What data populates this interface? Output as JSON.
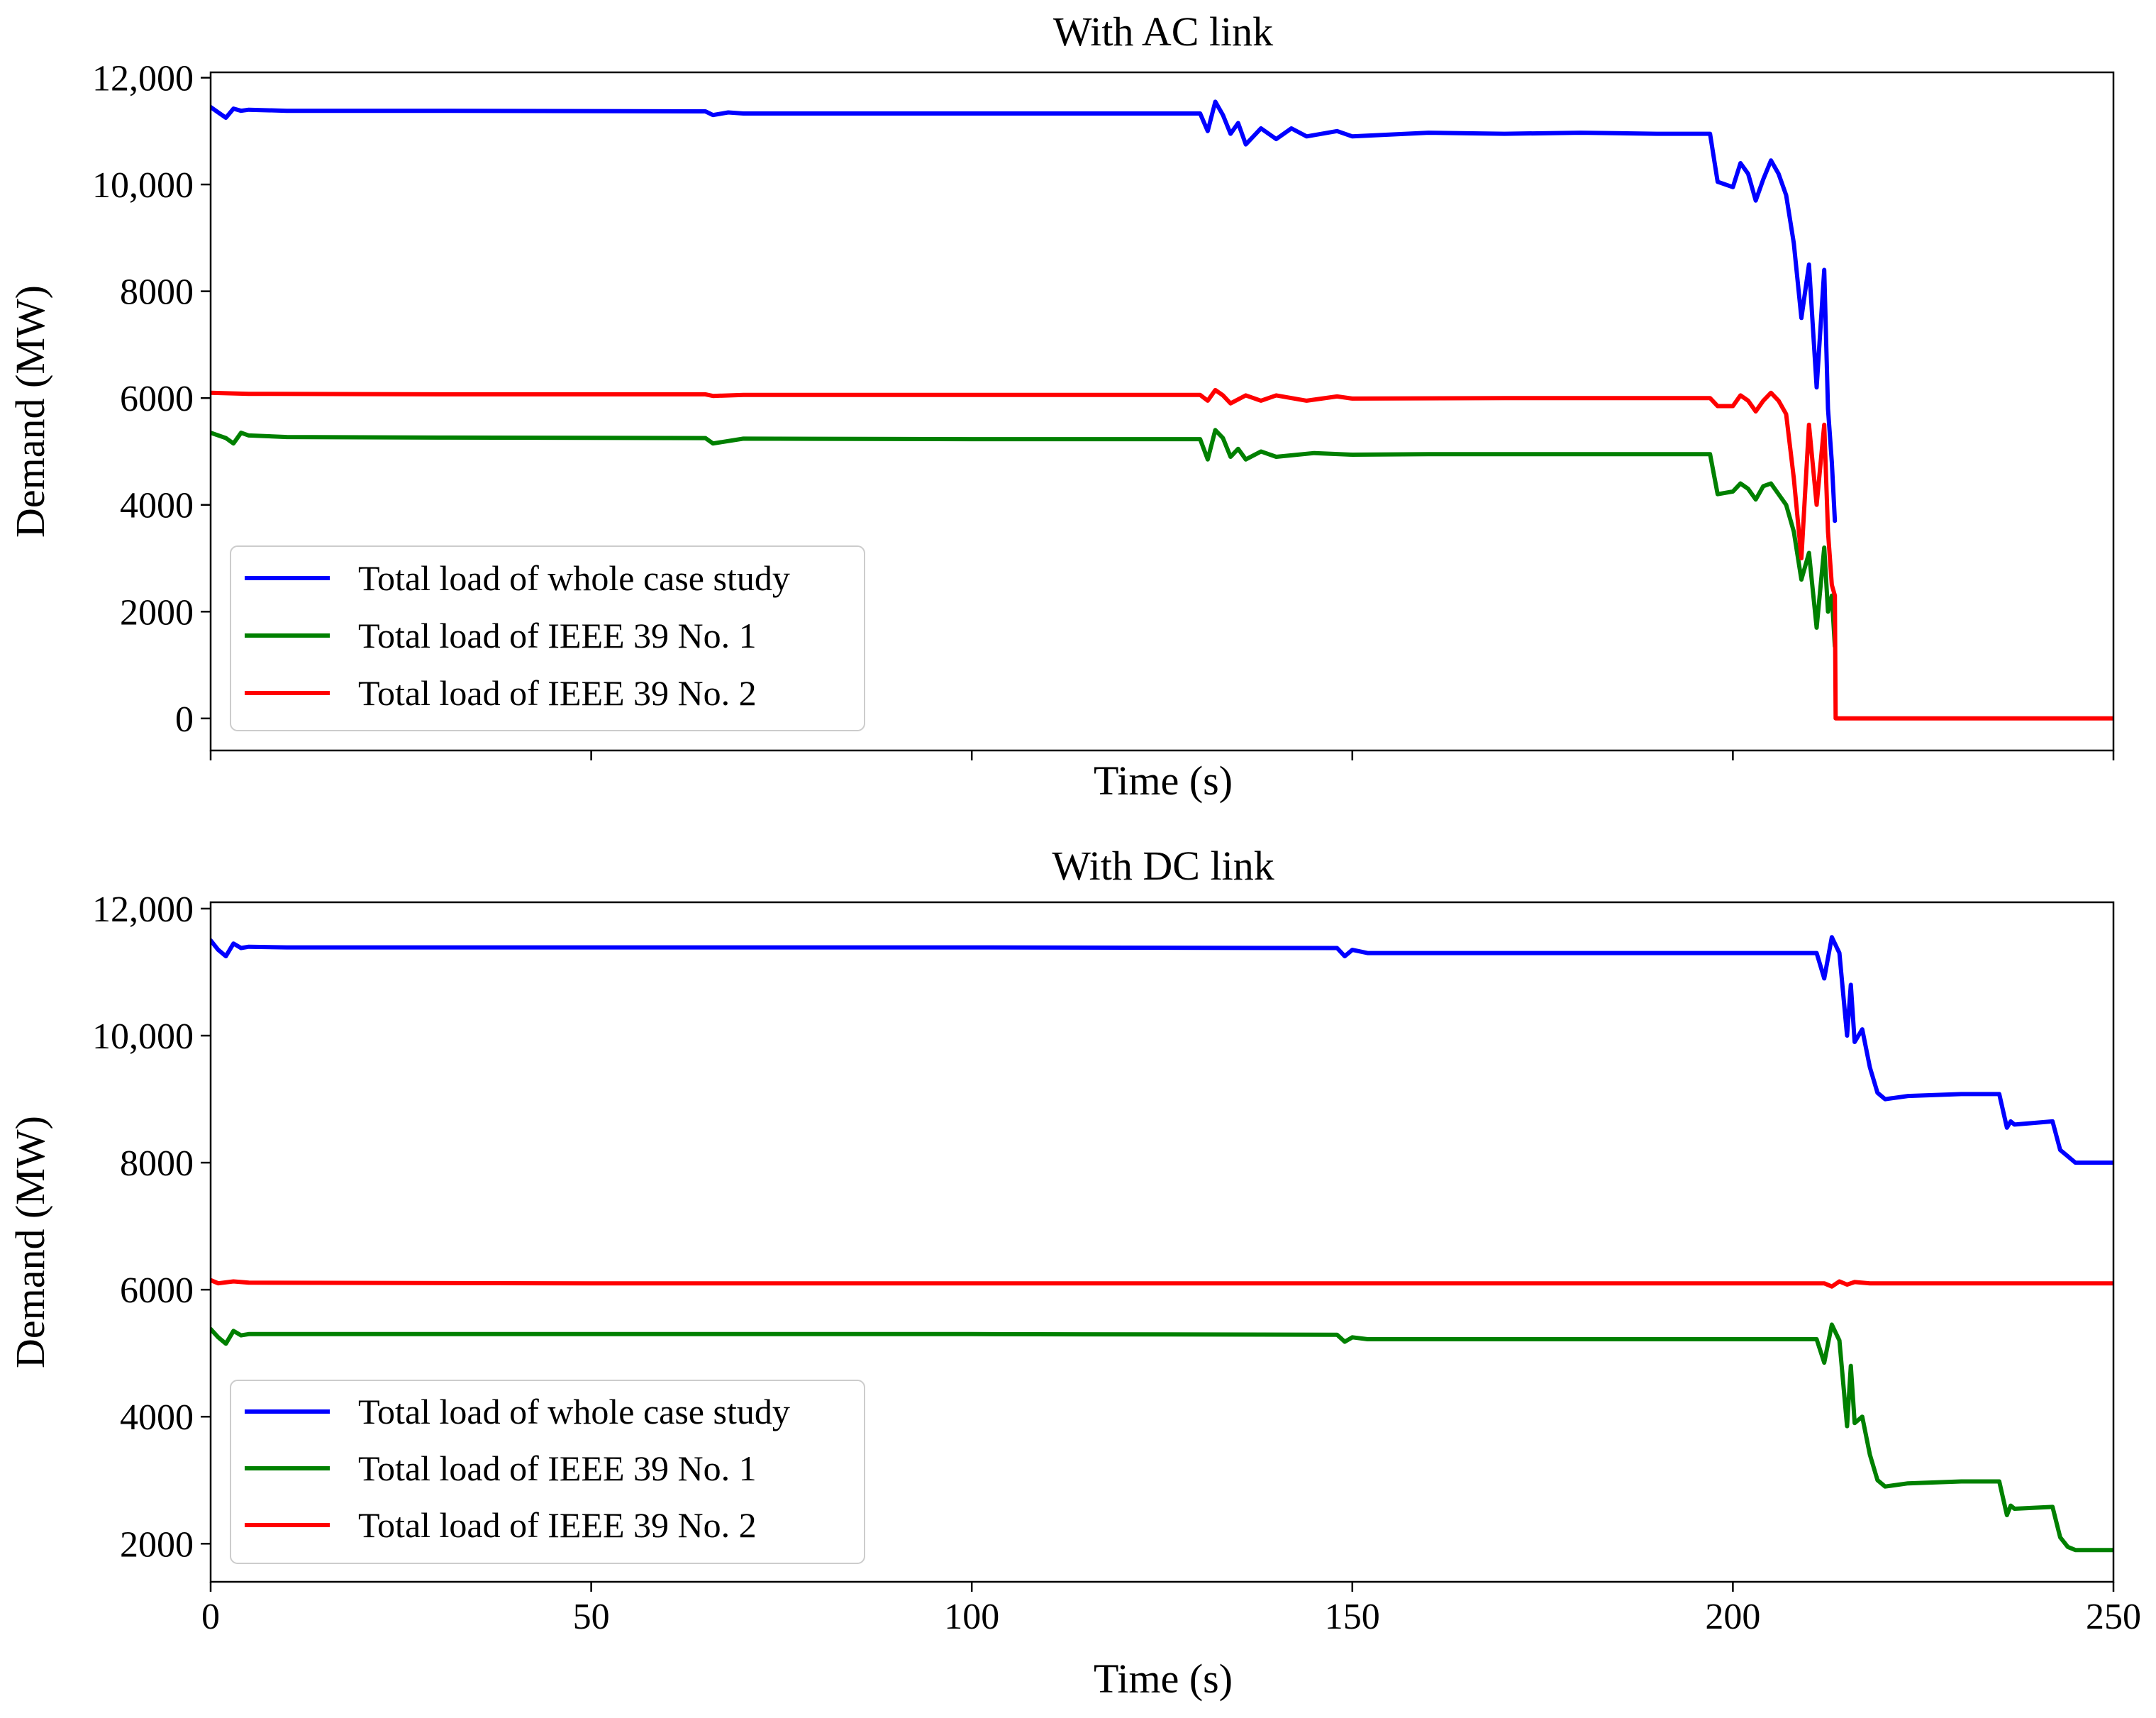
{
  "chart_data": [
    {
      "type": "line",
      "title": "With AC link",
      "xlabel": "Time (s)",
      "ylabel": "Demand (MW)",
      "xlim": [
        0,
        250
      ],
      "ylim": [
        -600,
        12100
      ],
      "xticks": [
        0,
        50,
        100,
        150,
        200,
        250
      ],
      "xtick_labels_shown": false,
      "yticks": [
        0,
        2000,
        4000,
        6000,
        8000,
        10000,
        12000
      ],
      "ytick_labels": [
        "0",
        "2000",
        "4000",
        "6000",
        "8000",
        "10,000",
        "12,000"
      ],
      "legend_position": "lower-left",
      "grid": false,
      "series": [
        {
          "name": "Total load of whole case study",
          "color": "#0000ff",
          "points": [
            [
              0,
              11450
            ],
            [
              1,
              11350
            ],
            [
              2,
              11250
            ],
            [
              3,
              11420
            ],
            [
              4,
              11380
            ],
            [
              5,
              11400
            ],
            [
              10,
              11380
            ],
            [
              30,
              11380
            ],
            [
              65,
              11370
            ],
            [
              66,
              11300
            ],
            [
              68,
              11350
            ],
            [
              70,
              11330
            ],
            [
              100,
              11330
            ],
            [
              130,
              11330
            ],
            [
              131,
              11000
            ],
            [
              132,
              11550
            ],
            [
              133,
              11300
            ],
            [
              134,
              10950
            ],
            [
              135,
              11150
            ],
            [
              136,
              10750
            ],
            [
              138,
              11050
            ],
            [
              140,
              10850
            ],
            [
              142,
              11050
            ],
            [
              144,
              10900
            ],
            [
              148,
              11000
            ],
            [
              150,
              10900
            ],
            [
              160,
              10970
            ],
            [
              170,
              10950
            ],
            [
              180,
              10970
            ],
            [
              190,
              10950
            ],
            [
              197,
              10950
            ],
            [
              198,
              10050
            ],
            [
              199,
              10000
            ],
            [
              200,
              9950
            ],
            [
              201,
              10400
            ],
            [
              202,
              10200
            ],
            [
              203,
              9700
            ],
            [
              204,
              10100
            ],
            [
              205,
              10450
            ],
            [
              206,
              10200
            ],
            [
              207,
              9800
            ],
            [
              208,
              8900
            ],
            [
              209,
              7500
            ],
            [
              210,
              8500
            ],
            [
              211,
              6200
            ],
            [
              212,
              8400
            ],
            [
              212.5,
              5800
            ],
            [
              213,
              4800
            ],
            [
              213.4,
              3700
            ]
          ]
        },
        {
          "name": "Total load of IEEE 39 No. 1",
          "color": "#008000",
          "points": [
            [
              0,
              5350
            ],
            [
              2,
              5250
            ],
            [
              3,
              5150
            ],
            [
              4,
              5350
            ],
            [
              5,
              5300
            ],
            [
              10,
              5270
            ],
            [
              30,
              5260
            ],
            [
              65,
              5250
            ],
            [
              66,
              5150
            ],
            [
              70,
              5240
            ],
            [
              100,
              5230
            ],
            [
              130,
              5230
            ],
            [
              131,
              4850
            ],
            [
              132,
              5400
            ],
            [
              133,
              5250
            ],
            [
              134,
              4900
            ],
            [
              135,
              5050
            ],
            [
              136,
              4850
            ],
            [
              138,
              5000
            ],
            [
              140,
              4900
            ],
            [
              145,
              4970
            ],
            [
              150,
              4940
            ],
            [
              160,
              4950
            ],
            [
              180,
              4950
            ],
            [
              197,
              4950
            ],
            [
              198,
              4200
            ],
            [
              200,
              4250
            ],
            [
              201,
              4400
            ],
            [
              202,
              4300
            ],
            [
              203,
              4100
            ],
            [
              204,
              4350
            ],
            [
              205,
              4400
            ],
            [
              206,
              4200
            ],
            [
              207,
              4000
            ],
            [
              208,
              3500
            ],
            [
              209,
              2600
            ],
            [
              210,
              3100
            ],
            [
              211,
              1700
            ],
            [
              212,
              3200
            ],
            [
              212.5,
              2000
            ],
            [
              213,
              2300
            ],
            [
              213.4,
              1350
            ]
          ]
        },
        {
          "name": "Total load of IEEE 39 No. 2",
          "color": "#ff0000",
          "points": [
            [
              0,
              6100
            ],
            [
              5,
              6080
            ],
            [
              30,
              6070
            ],
            [
              65,
              6070
            ],
            [
              66,
              6040
            ],
            [
              70,
              6060
            ],
            [
              130,
              6060
            ],
            [
              131,
              5950
            ],
            [
              132,
              6150
            ],
            [
              133,
              6050
            ],
            [
              134,
              5900
            ],
            [
              136,
              6050
            ],
            [
              138,
              5950
            ],
            [
              140,
              6050
            ],
            [
              144,
              5950
            ],
            [
              148,
              6030
            ],
            [
              150,
              5990
            ],
            [
              170,
              6000
            ],
            [
              197,
              6000
            ],
            [
              198,
              5850
            ],
            [
              200,
              5850
            ],
            [
              201,
              6050
            ],
            [
              202,
              5950
            ],
            [
              203,
              5750
            ],
            [
              204,
              5950
            ],
            [
              205,
              6100
            ],
            [
              206,
              5950
            ],
            [
              207,
              5700
            ],
            [
              208,
              4500
            ],
            [
              209,
              3000
            ],
            [
              210,
              5500
            ],
            [
              211,
              4000
            ],
            [
              212,
              5500
            ],
            [
              212.5,
              3500
            ],
            [
              213,
              2500
            ],
            [
              213.4,
              2300
            ],
            [
              213.5,
              0
            ],
            [
              250,
              0
            ]
          ]
        }
      ]
    },
    {
      "type": "line",
      "title": "With DC link",
      "xlabel": "Time (s)",
      "ylabel": "Demand (MW)",
      "xlim": [
        0,
        250
      ],
      "ylim": [
        1400,
        12100
      ],
      "xticks": [
        0,
        50,
        100,
        150,
        200,
        250
      ],
      "xtick_labels": [
        "0",
        "50",
        "100",
        "150",
        "200",
        "250"
      ],
      "yticks": [
        2000,
        4000,
        6000,
        8000,
        10000,
        12000
      ],
      "ytick_labels": [
        "2000",
        "4000",
        "6000",
        "8000",
        "10,000",
        "12,000"
      ],
      "legend_position": "lower-left",
      "grid": false,
      "series": [
        {
          "name": "Total load of whole case study",
          "color": "#0000ff",
          "points": [
            [
              0,
              11500
            ],
            [
              1,
              11350
            ],
            [
              2,
              11250
            ],
            [
              3,
              11450
            ],
            [
              4,
              11380
            ],
            [
              5,
              11400
            ],
            [
              10,
              11390
            ],
            [
              100,
              11390
            ],
            [
              148,
              11380
            ],
            [
              149,
              11250
            ],
            [
              150,
              11350
            ],
            [
              152,
              11300
            ],
            [
              200,
              11300
            ],
            [
              211,
              11300
            ],
            [
              212,
              10900
            ],
            [
              213,
              11550
            ],
            [
              214,
              11300
            ],
            [
              215,
              10000
            ],
            [
              215.5,
              10800
            ],
            [
              216,
              9900
            ],
            [
              217,
              10100
            ],
            [
              218,
              9500
            ],
            [
              219,
              9100
            ],
            [
              220,
              9000
            ],
            [
              223,
              9050
            ],
            [
              230,
              9080
            ],
            [
              235,
              9080
            ],
            [
              236,
              8550
            ],
            [
              236.5,
              8650
            ],
            [
              237,
              8600
            ],
            [
              242,
              8650
            ],
            [
              243,
              8200
            ],
            [
              244,
              8100
            ],
            [
              245,
              8000
            ],
            [
              250,
              8000
            ]
          ]
        },
        {
          "name": "Total load of IEEE 39 No. 1",
          "color": "#008000",
          "points": [
            [
              0,
              5380
            ],
            [
              1,
              5250
            ],
            [
              2,
              5150
            ],
            [
              3,
              5350
            ],
            [
              4,
              5280
            ],
            [
              5,
              5300
            ],
            [
              10,
              5300
            ],
            [
              100,
              5300
            ],
            [
              148,
              5290
            ],
            [
              149,
              5180
            ],
            [
              150,
              5250
            ],
            [
              152,
              5220
            ],
            [
              200,
              5220
            ],
            [
              211,
              5220
            ],
            [
              212,
              4850
            ],
            [
              213,
              5450
            ],
            [
              214,
              5200
            ],
            [
              215,
              3850
            ],
            [
              215.5,
              4800
            ],
            [
              216,
              3900
            ],
            [
              217,
              4000
            ],
            [
              218,
              3400
            ],
            [
              219,
              3000
            ],
            [
              220,
              2900
            ],
            [
              223,
              2950
            ],
            [
              230,
              2980
            ],
            [
              235,
              2980
            ],
            [
              236,
              2450
            ],
            [
              236.5,
              2600
            ],
            [
              237,
              2550
            ],
            [
              242,
              2580
            ],
            [
              243,
              2100
            ],
            [
              244,
              1950
            ],
            [
              245,
              1900
            ],
            [
              250,
              1900
            ]
          ]
        },
        {
          "name": "Total load of IEEE 39 No. 2",
          "color": "#ff0000",
          "points": [
            [
              0,
              6150
            ],
            [
              1,
              6100
            ],
            [
              3,
              6130
            ],
            [
              5,
              6110
            ],
            [
              50,
              6100
            ],
            [
              100,
              6100
            ],
            [
              150,
              6100
            ],
            [
              200,
              6100
            ],
            [
              212,
              6100
            ],
            [
              213,
              6050
            ],
            [
              214,
              6130
            ],
            [
              215,
              6080
            ],
            [
              216,
              6120
            ],
            [
              218,
              6100
            ],
            [
              250,
              6100
            ]
          ]
        }
      ]
    }
  ]
}
